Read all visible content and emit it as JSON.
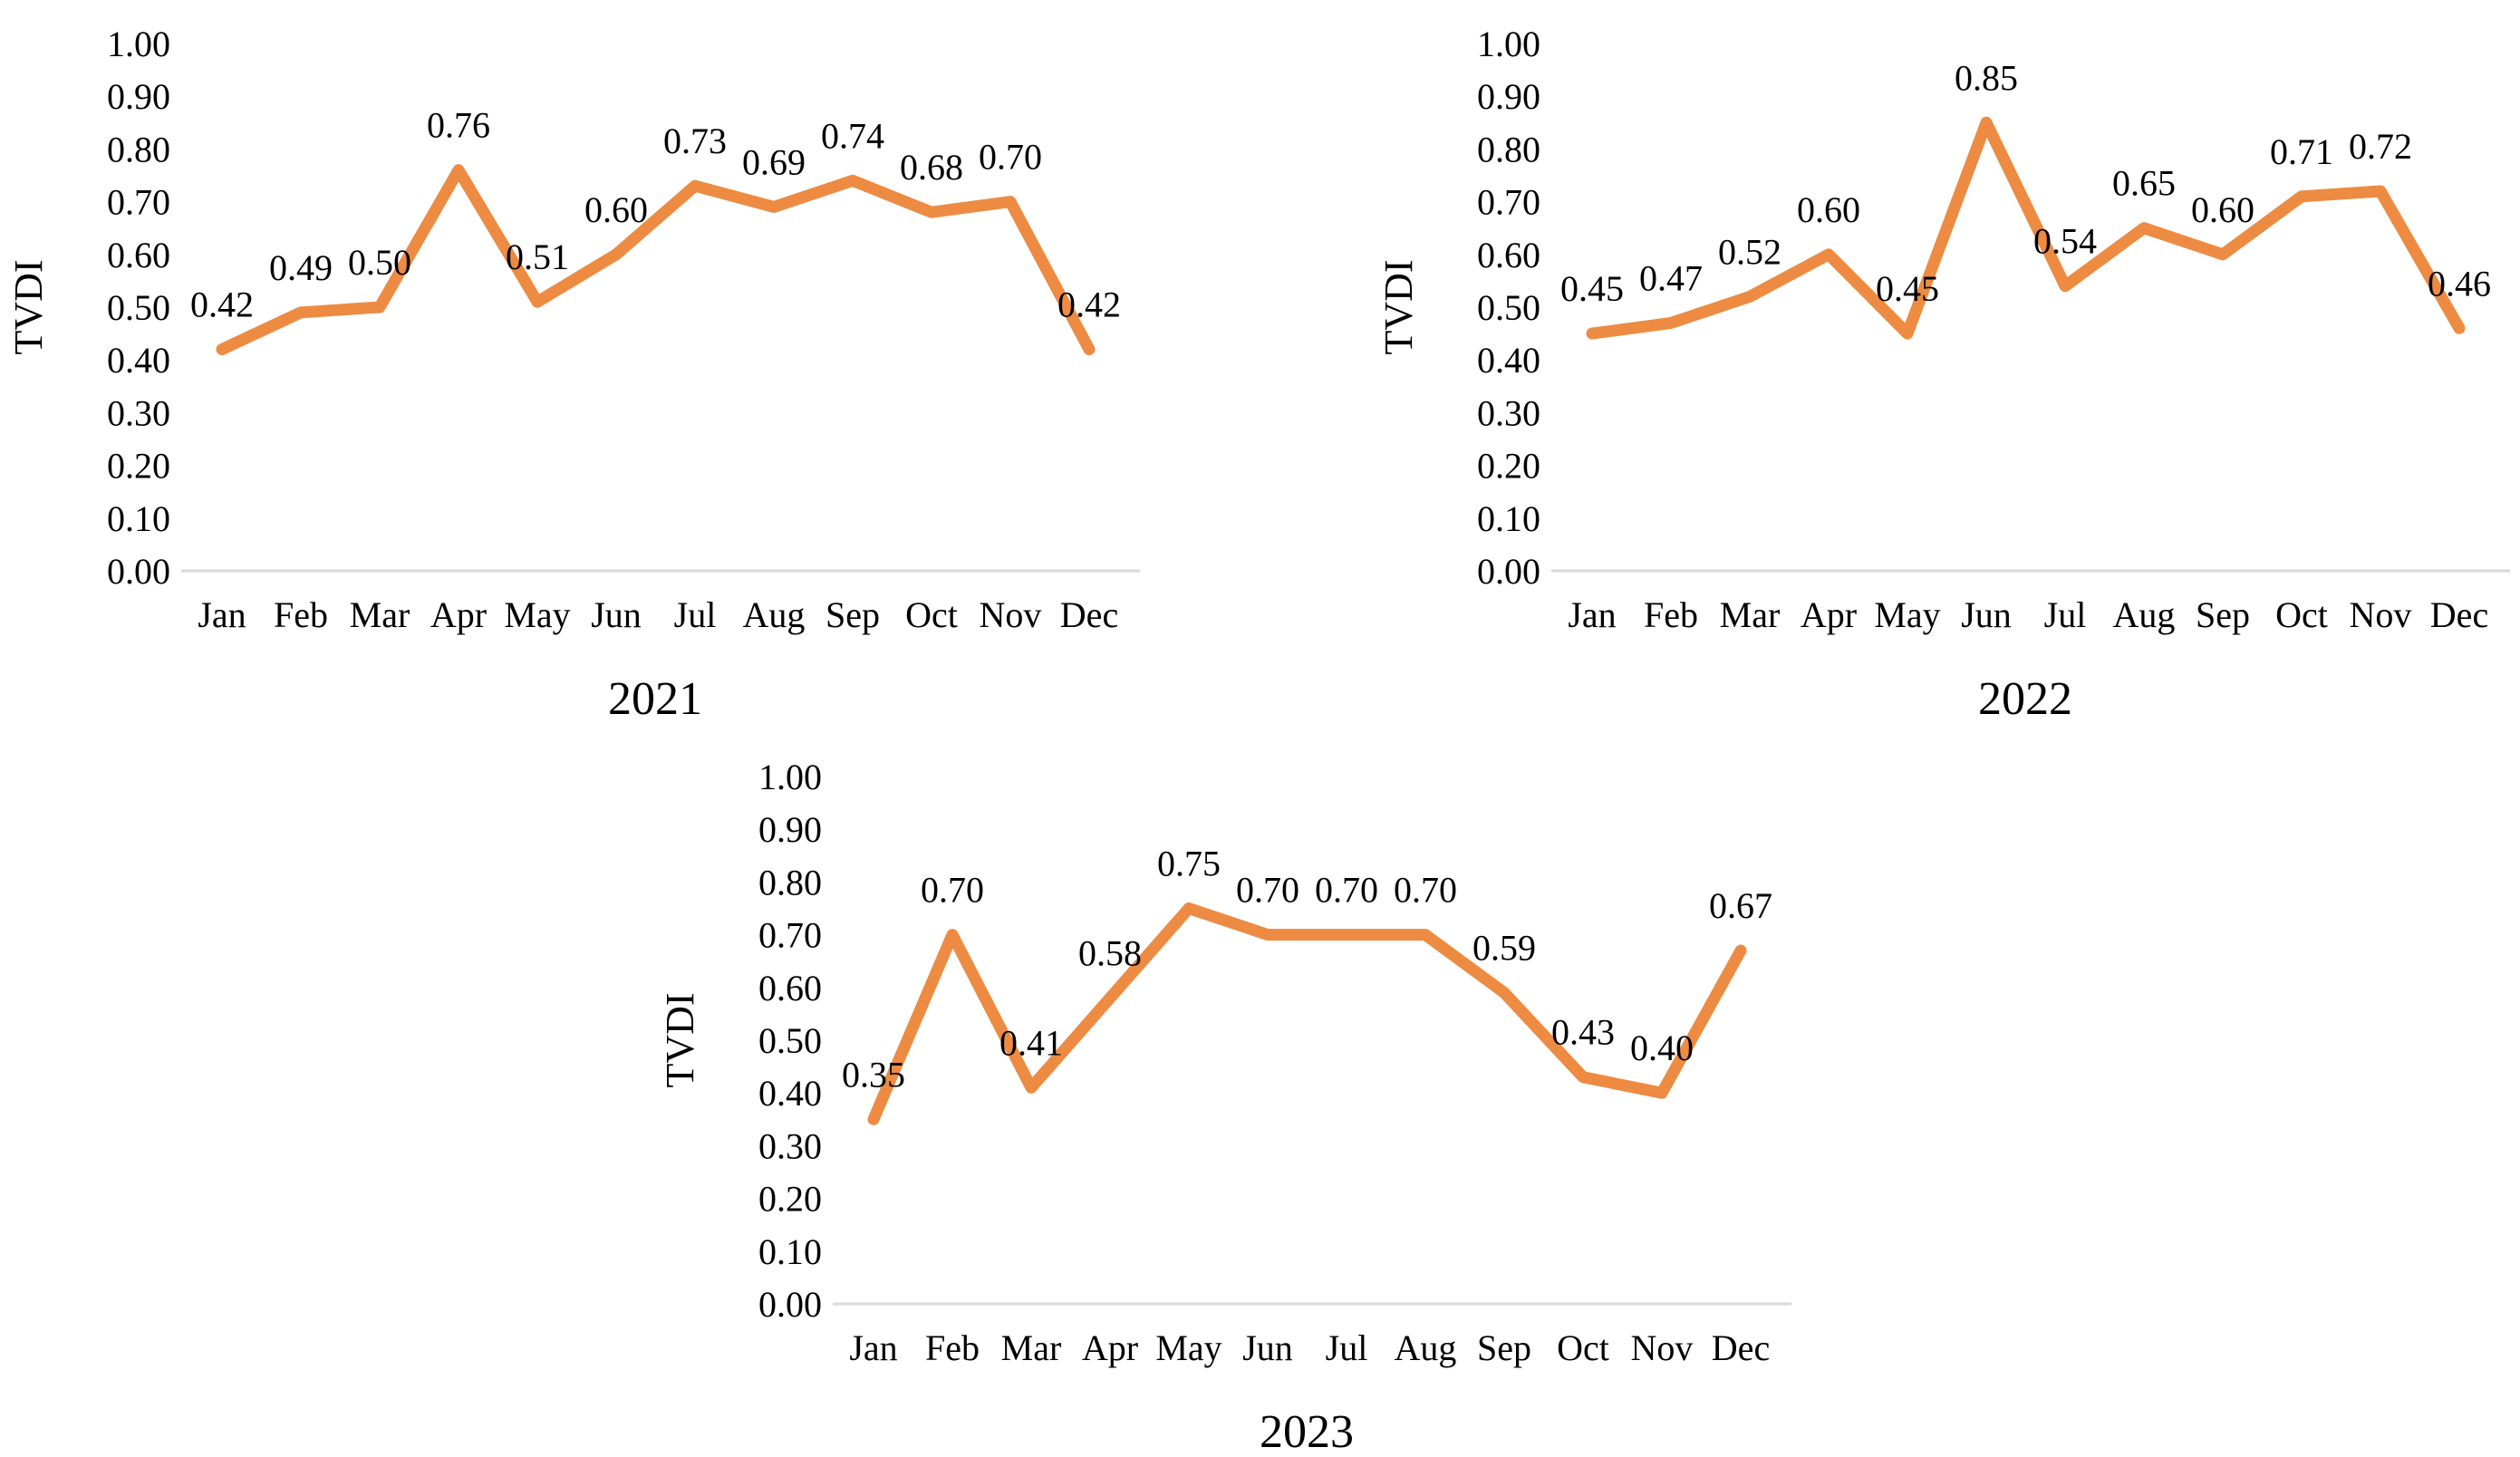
{
  "figure": {
    "description": "Monthly TVDI line charts for three years",
    "panels": [
      "2021",
      "2022",
      "2023"
    ]
  },
  "colors": {
    "line": "#ED8B42",
    "axis_line": "#D9D9D9",
    "text": "#000000",
    "background": "#FFFFFF"
  },
  "chart_data": [
    {
      "type": "line",
      "title": "2021",
      "ylabel": "TVDI",
      "xlabel": "",
      "categories": [
        "Jan",
        "Feb",
        "Mar",
        "Apr",
        "May",
        "Jun",
        "Jul",
        "Aug",
        "Sep",
        "Oct",
        "Nov",
        "Dec"
      ],
      "series": [
        {
          "name": "TVDI",
          "values": [
            0.42,
            0.49,
            0.5,
            0.76,
            0.51,
            0.6,
            0.73,
            0.69,
            0.74,
            0.68,
            0.7,
            0.42
          ]
        }
      ],
      "ylim": [
        0,
        1
      ],
      "ytick_step": 0.1,
      "ytick_format": "0.00",
      "grid": false,
      "legend": "none",
      "data_labels": "above",
      "line_color": "#ED8B42"
    },
    {
      "type": "line",
      "title": "2022",
      "ylabel": "TVDI",
      "xlabel": "",
      "categories": [
        "Jan",
        "Feb",
        "Mar",
        "Apr",
        "May",
        "Jun",
        "Jul",
        "Aug",
        "Sep",
        "Oct",
        "Nov",
        "Dec"
      ],
      "series": [
        {
          "name": "TVDI",
          "values": [
            0.45,
            0.47,
            0.52,
            0.6,
            0.45,
            0.85,
            0.54,
            0.65,
            0.6,
            0.71,
            0.72,
            0.46
          ]
        }
      ],
      "ylim": [
        0,
        1
      ],
      "ytick_step": 0.1,
      "ytick_format": "0.00",
      "grid": false,
      "legend": "none",
      "data_labels": "above",
      "line_color": "#ED8B42"
    },
    {
      "type": "line",
      "title": "2023",
      "ylabel": "TVDI",
      "xlabel": "",
      "categories": [
        "Jan",
        "Feb",
        "Mar",
        "Apr",
        "May",
        "Jun",
        "Jul",
        "Aug",
        "Sep",
        "Oct",
        "Nov",
        "Dec"
      ],
      "series": [
        {
          "name": "TVDI",
          "values": [
            0.35,
            0.7,
            0.41,
            0.58,
            0.75,
            0.7,
            0.7,
            0.7,
            0.59,
            0.43,
            0.4,
            0.67
          ]
        }
      ],
      "ylim": [
        0,
        1
      ],
      "ytick_step": 0.1,
      "ytick_format": "0.00",
      "grid": false,
      "legend": "none",
      "data_labels": "above",
      "line_color": "#ED8B42"
    }
  ]
}
